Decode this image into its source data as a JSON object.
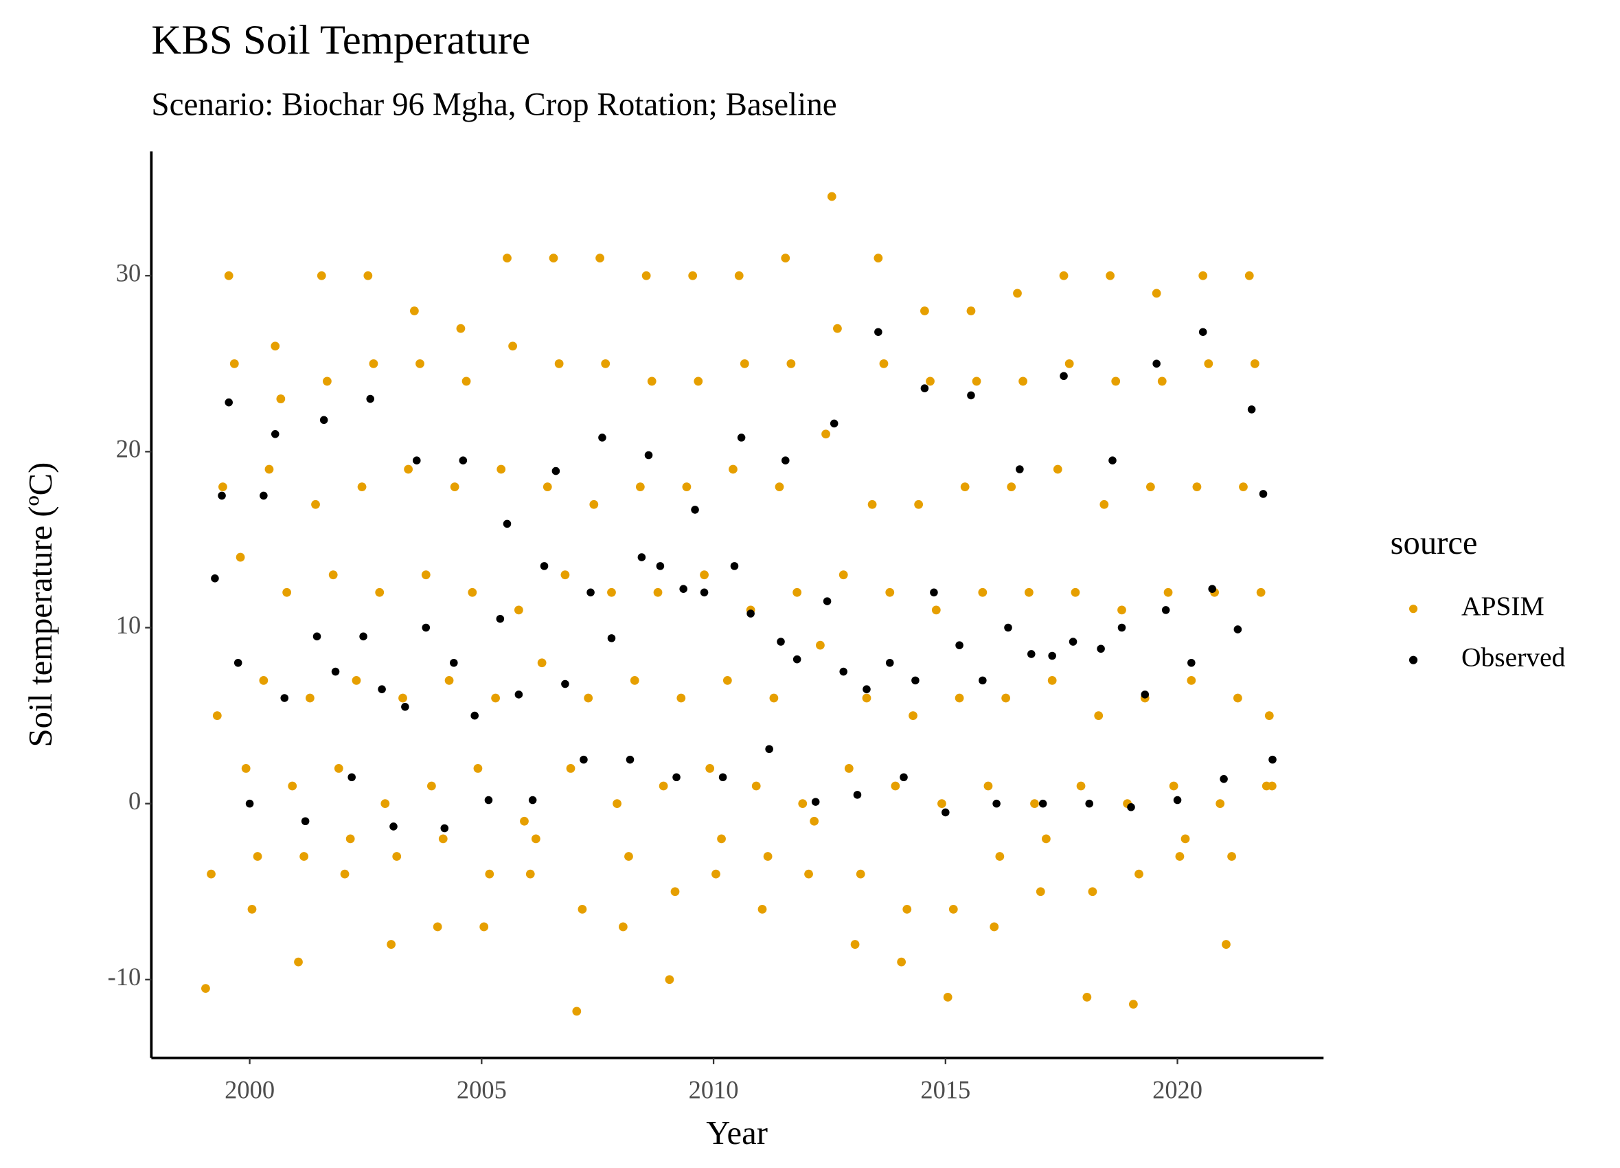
{
  "chart_data": {
    "type": "scatter",
    "title": "KBS Soil Temperature",
    "subtitle": "Scenario: Biochar 96 Mgha, Crop Rotation; Baseline",
    "x_label": "Year",
    "y_label": "Soil temperature (ºC)",
    "legend_title": "source",
    "legend_position": "right",
    "grid": false,
    "xlim": [
      1997.88,
      2023.15
    ],
    "ylim": [
      -14.45,
      37.06
    ],
    "xticks": [
      2000,
      2005,
      2010,
      2015,
      2020
    ],
    "yticks": [
      -10,
      0,
      10,
      20,
      30
    ],
    "series": [
      {
        "name": "APSIM",
        "color": "#E69F00",
        "x": [
          1999.05,
          1999.17,
          1999.3,
          1999.42,
          1999.55,
          1999.67,
          1999.8,
          1999.92,
          2000.05,
          2000.17,
          2000.3,
          2000.42,
          2000.55,
          2000.67,
          2000.8,
          2000.92,
          2001.05,
          2001.17,
          2001.3,
          2001.42,
          2001.55,
          2001.67,
          2001.8,
          2001.92,
          2002.05,
          2002.17,
          2002.3,
          2002.42,
          2002.55,
          2002.67,
          2002.8,
          2002.92,
          2003.05,
          2003.17,
          2003.3,
          2003.42,
          2003.55,
          2003.67,
          2003.8,
          2003.92,
          2004.05,
          2004.17,
          2004.3,
          2004.42,
          2004.55,
          2004.67,
          2004.8,
          2004.92,
          2005.05,
          2005.17,
          2005.3,
          2005.42,
          2005.55,
          2005.67,
          2005.8,
          2005.92,
          2006.05,
          2006.17,
          2006.3,
          2006.42,
          2006.55,
          2006.67,
          2006.8,
          2006.92,
          2007.05,
          2007.17,
          2007.3,
          2007.42,
          2007.55,
          2007.67,
          2007.8,
          2007.92,
          2008.05,
          2008.17,
          2008.3,
          2008.42,
          2008.55,
          2008.67,
          2008.8,
          2008.92,
          2009.05,
          2009.17,
          2009.3,
          2009.42,
          2009.55,
          2009.67,
          2009.8,
          2009.92,
          2010.05,
          2010.17,
          2010.3,
          2010.42,
          2010.55,
          2010.67,
          2010.8,
          2010.92,
          2011.05,
          2011.17,
          2011.3,
          2011.42,
          2011.55,
          2011.67,
          2011.8,
          2011.92,
          2012.05,
          2012.17,
          2012.3,
          2012.42,
          2012.55,
          2012.67,
          2012.8,
          2012.92,
          2013.05,
          2013.17,
          2013.3,
          2013.42,
          2013.55,
          2013.67,
          2013.8,
          2013.92,
          2014.05,
          2014.17,
          2014.3,
          2014.42,
          2014.55,
          2014.67,
          2014.8,
          2014.92,
          2015.05,
          2015.17,
          2015.3,
          2015.42,
          2015.55,
          2015.67,
          2015.8,
          2015.92,
          2016.05,
          2016.17,
          2016.3,
          2016.42,
          2016.55,
          2016.67,
          2016.8,
          2016.92,
          2017.05,
          2017.17,
          2017.3,
          2017.42,
          2017.55,
          2017.67,
          2017.8,
          2017.92,
          2018.05,
          2018.17,
          2018.3,
          2018.42,
          2018.55,
          2018.67,
          2018.8,
          2018.92,
          2019.05,
          2019.17,
          2019.3,
          2019.42,
          2019.55,
          2019.67,
          2019.8,
          2019.92,
          2020.05,
          2020.17,
          2020.3,
          2020.42,
          2020.55,
          2020.67,
          2020.8,
          2020.92,
          2021.05,
          2021.17,
          2021.3,
          2021.42,
          2021.55,
          2021.67,
          2021.8,
          2021.92,
          2021.98,
          2022.04
        ],
        "values": [
          -10.5,
          -4,
          5,
          18,
          30,
          25,
          14,
          2,
          -6,
          -3,
          7,
          19,
          26,
          23,
          12,
          1,
          -9,
          -3,
          6,
          17,
          30,
          24,
          13,
          2,
          -4,
          -2,
          7,
          18,
          30,
          25,
          12,
          0,
          -8,
          -3,
          6,
          19,
          28,
          25,
          13,
          1,
          -7,
          -2,
          7,
          18,
          27,
          24,
          12,
          2,
          -7,
          -4,
          6,
          19,
          31,
          26,
          11,
          -1,
          -4,
          -2,
          8,
          18,
          31,
          25,
          13,
          2,
          -11.8,
          -6,
          6,
          17,
          31,
          25,
          12,
          0,
          -7,
          -3,
          7,
          18,
          30,
          24,
          12,
          1,
          -10,
          -5,
          6,
          18,
          30,
          24,
          13,
          2,
          -4,
          -2,
          7,
          19,
          30,
          25,
          11,
          1,
          -6,
          -3,
          6,
          18,
          31,
          25,
          12,
          0,
          -4,
          -1,
          9,
          21,
          34.5,
          27,
          13,
          2,
          -8,
          -4,
          6,
          17,
          31,
          25,
          12,
          1,
          -9,
          -6,
          5,
          17,
          28,
          24,
          11,
          0,
          -11,
          -6,
          6,
          18,
          28,
          24,
          12,
          1,
          -7,
          -3,
          6,
          18,
          29,
          24,
          12,
          0,
          -5,
          -2,
          7,
          19,
          30,
          25,
          12,
          1,
          -11,
          -5,
          5,
          17,
          30,
          24,
          11,
          0,
          -11.4,
          -4,
          6,
          18,
          29,
          24,
          12,
          1,
          -3,
          -2,
          7,
          18,
          30,
          25,
          12,
          0,
          -8,
          -3,
          6,
          18,
          30,
          25,
          12,
          1,
          5,
          1
        ]
      },
      {
        "name": "Observed",
        "color": "#000000",
        "x": [
          1999.25,
          1999.4,
          1999.55,
          1999.75,
          2000.0,
          2000.3,
          2000.55,
          2000.75,
          2001.2,
          2001.45,
          2001.6,
          2001.85,
          2002.2,
          2002.45,
          2002.6,
          2002.85,
          2003.1,
          2003.35,
          2003.6,
          2003.8,
          2004.2,
          2004.4,
          2004.6,
          2004.85,
          2005.15,
          2005.4,
          2005.55,
          2005.8,
          2006.1,
          2006.35,
          2006.6,
          2006.8,
          2007.2,
          2007.35,
          2007.6,
          2007.8,
          2008.2,
          2008.45,
          2008.6,
          2008.85,
          2009.2,
          2009.35,
          2009.6,
          2009.8,
          2010.2,
          2010.45,
          2010.6,
          2010.8,
          2011.2,
          2011.45,
          2011.55,
          2011.8,
          2012.2,
          2012.45,
          2012.6,
          2012.8,
          2013.1,
          2013.3,
          2013.55,
          2013.8,
          2014.1,
          2014.35,
          2014.55,
          2014.75,
          2015.0,
          2015.3,
          2015.55,
          2015.8,
          2016.1,
          2016.35,
          2016.6,
          2016.85,
          2017.1,
          2017.3,
          2017.55,
          2017.75,
          2018.1,
          2018.35,
          2018.6,
          2018.8,
          2019.0,
          2019.3,
          2019.55,
          2019.75,
          2020.0,
          2020.3,
          2020.55,
          2020.75,
          2021.0,
          2021.3,
          2021.6,
          2021.85,
          2022.05
        ],
        "values": [
          12.8,
          17.5,
          22.8,
          8,
          0,
          17.5,
          21,
          6,
          -1,
          9.5,
          21.8,
          7.5,
          1.5,
          9.5,
          23,
          6.5,
          -1.3,
          5.5,
          19.5,
          10,
          -1.4,
          8,
          19.5,
          5,
          0.2,
          10.5,
          15.9,
          6.2,
          0.2,
          13.5,
          18.9,
          6.8,
          2.5,
          12,
          20.8,
          9.4,
          2.5,
          14,
          19.8,
          13.5,
          1.5,
          12.2,
          16.7,
          12,
          1.5,
          13.5,
          20.8,
          10.8,
          3.1,
          9.2,
          19.5,
          8.2,
          0.1,
          11.5,
          21.6,
          7.5,
          0.5,
          6.5,
          26.8,
          8,
          1.5,
          7,
          23.6,
          12,
          -0.5,
          9,
          23.2,
          7,
          0,
          10,
          19,
          8.5,
          0,
          8.4,
          24.3,
          9.2,
          0,
          8.8,
          19.5,
          10,
          -0.2,
          6.2,
          25,
          11,
          0.2,
          8,
          26.8,
          12.2,
          1.4,
          9.9,
          22.4,
          17.6,
          2.5
        ]
      }
    ]
  }
}
